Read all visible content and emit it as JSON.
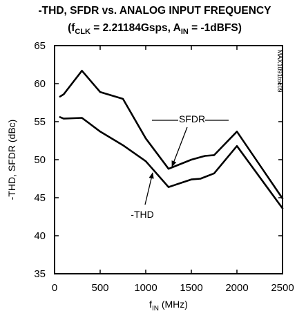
{
  "chart_data": {
    "type": "line",
    "title_line1": "-THD, SFDR vs. ANALOG INPUT FREQUENCY",
    "title_line2": {
      "open": "(f",
      "clk_sub": "CLK",
      "clk_eq": " = 2.21184Gsps, A",
      "in_sub": "IN",
      "tail": " = -1dBFS)"
    },
    "xlabel": {
      "main": "f",
      "sub": "IN",
      "unit": " (MHz)"
    },
    "ylabel": "-THD, SFDR (dBc)",
    "part_number": "MAX1091toc09",
    "xlim": [
      0,
      2500
    ],
    "ylim": [
      35,
      65
    ],
    "x_ticks": [
      0,
      500,
      1000,
      1500,
      2000,
      2500
    ],
    "y_ticks": [
      35,
      40,
      45,
      50,
      55,
      60,
      65
    ],
    "grid": false,
    "series": [
      {
        "name": "SFDR",
        "x": [
          60,
          100,
          300,
          500,
          750,
          1000,
          1250,
          1500,
          1650,
          1750,
          2000,
          2500
        ],
        "y": [
          58.3,
          58.6,
          61.7,
          58.9,
          58.0,
          52.8,
          48.8,
          50.0,
          50.5,
          50.6,
          53.7,
          44.9
        ]
      },
      {
        "name": "-THD",
        "x": [
          60,
          100,
          300,
          500,
          750,
          1000,
          1250,
          1500,
          1600,
          1750,
          2000,
          2500
        ],
        "y": [
          55.6,
          55.4,
          55.5,
          53.7,
          51.9,
          49.8,
          46.4,
          47.4,
          47.5,
          48.2,
          51.8,
          43.6
        ]
      }
    ],
    "annotations": [
      {
        "text": "SFDR",
        "points_to_x": 1270,
        "points_to_y": 49.0
      },
      {
        "text": "-THD",
        "points_to_x": 1000,
        "points_to_y": 49.6
      }
    ]
  }
}
